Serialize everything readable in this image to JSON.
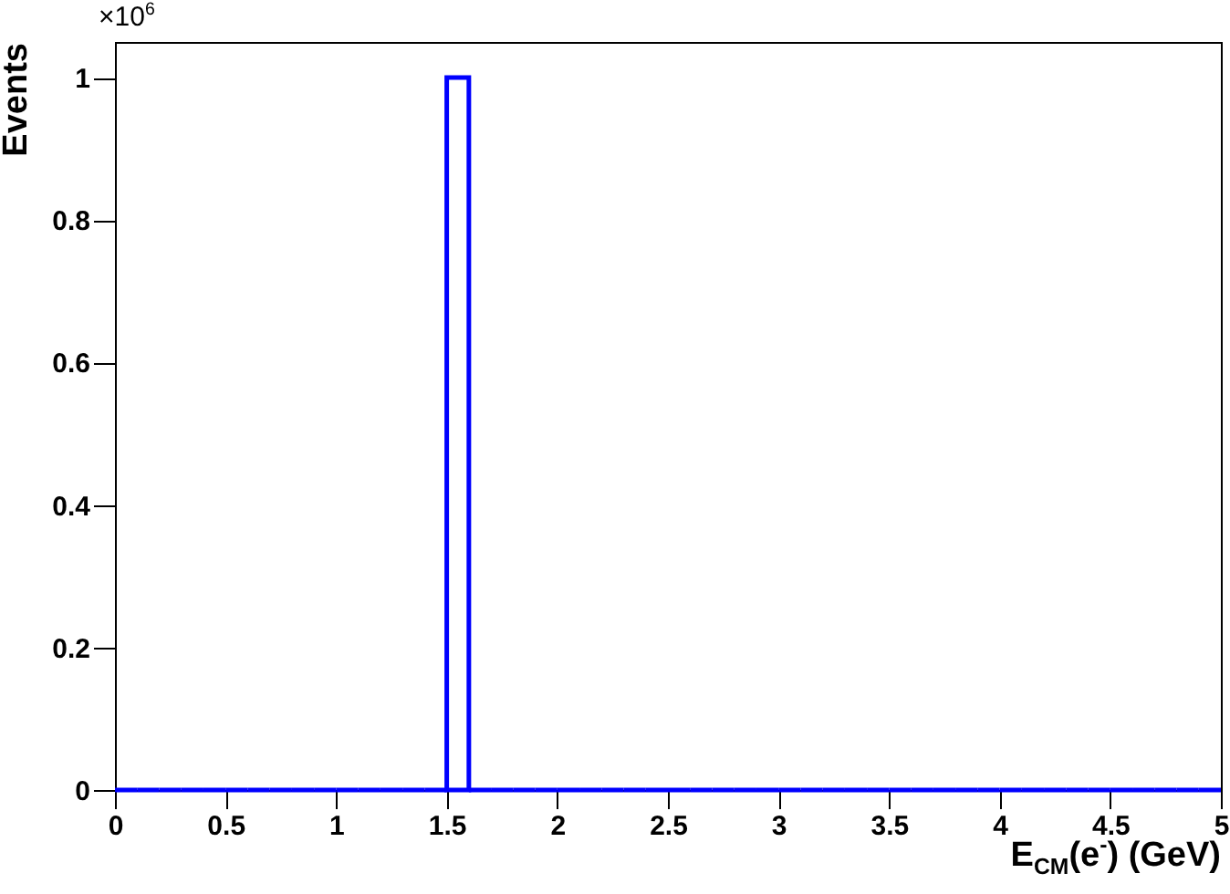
{
  "chart_data": {
    "type": "histogram",
    "xlabel": "E$_{CM}$(e$^{-}$) (GeV)",
    "ylabel": "Events",
    "annotations": [
      "×10$^{6}$"
    ],
    "bins": [
      0,
      0.1,
      0.2,
      0.3,
      0.4,
      0.5,
      0.6,
      0.7,
      0.8,
      0.9,
      1,
      1.1,
      1.2,
      1.3,
      1.4,
      1.5,
      1.6,
      1.7,
      1.8,
      1.9,
      2,
      2.1,
      2.2,
      2.3,
      2.4,
      2.5,
      2.6,
      2.7,
      2.8,
      2.9,
      3,
      3.1,
      3.2,
      3.3,
      3.4,
      3.5,
      3.6,
      3.7,
      3.8,
      3.9,
      4,
      4.1,
      4.2,
      4.3,
      4.4,
      4.5,
      4.6,
      4.7,
      4.8,
      4.9,
      5
    ],
    "values": [
      0,
      0,
      0,
      0,
      0,
      0,
      0,
      0,
      0,
      0,
      0,
      0,
      0,
      0,
      0,
      1,
      0,
      0,
      0,
      0,
      0,
      0,
      0,
      0,
      0,
      0,
      0,
      0,
      0,
      0,
      0,
      0,
      0,
      0,
      0,
      0,
      0,
      0,
      0,
      0,
      0,
      0,
      0,
      0,
      0,
      0,
      0,
      0,
      0,
      0
    ],
    "color": "#0000ff",
    "xlim": [
      0,
      5
    ],
    "xticks": [
      0,
      0.5,
      1,
      1.5,
      2,
      2.5,
      3,
      3.5,
      4,
      4.5,
      5
    ],
    "ylim": [
      0,
      1.05
    ],
    "yticks": [
      0,
      0.2,
      0.4,
      0.6,
      0.8,
      1
    ],
    "grid": false
  }
}
